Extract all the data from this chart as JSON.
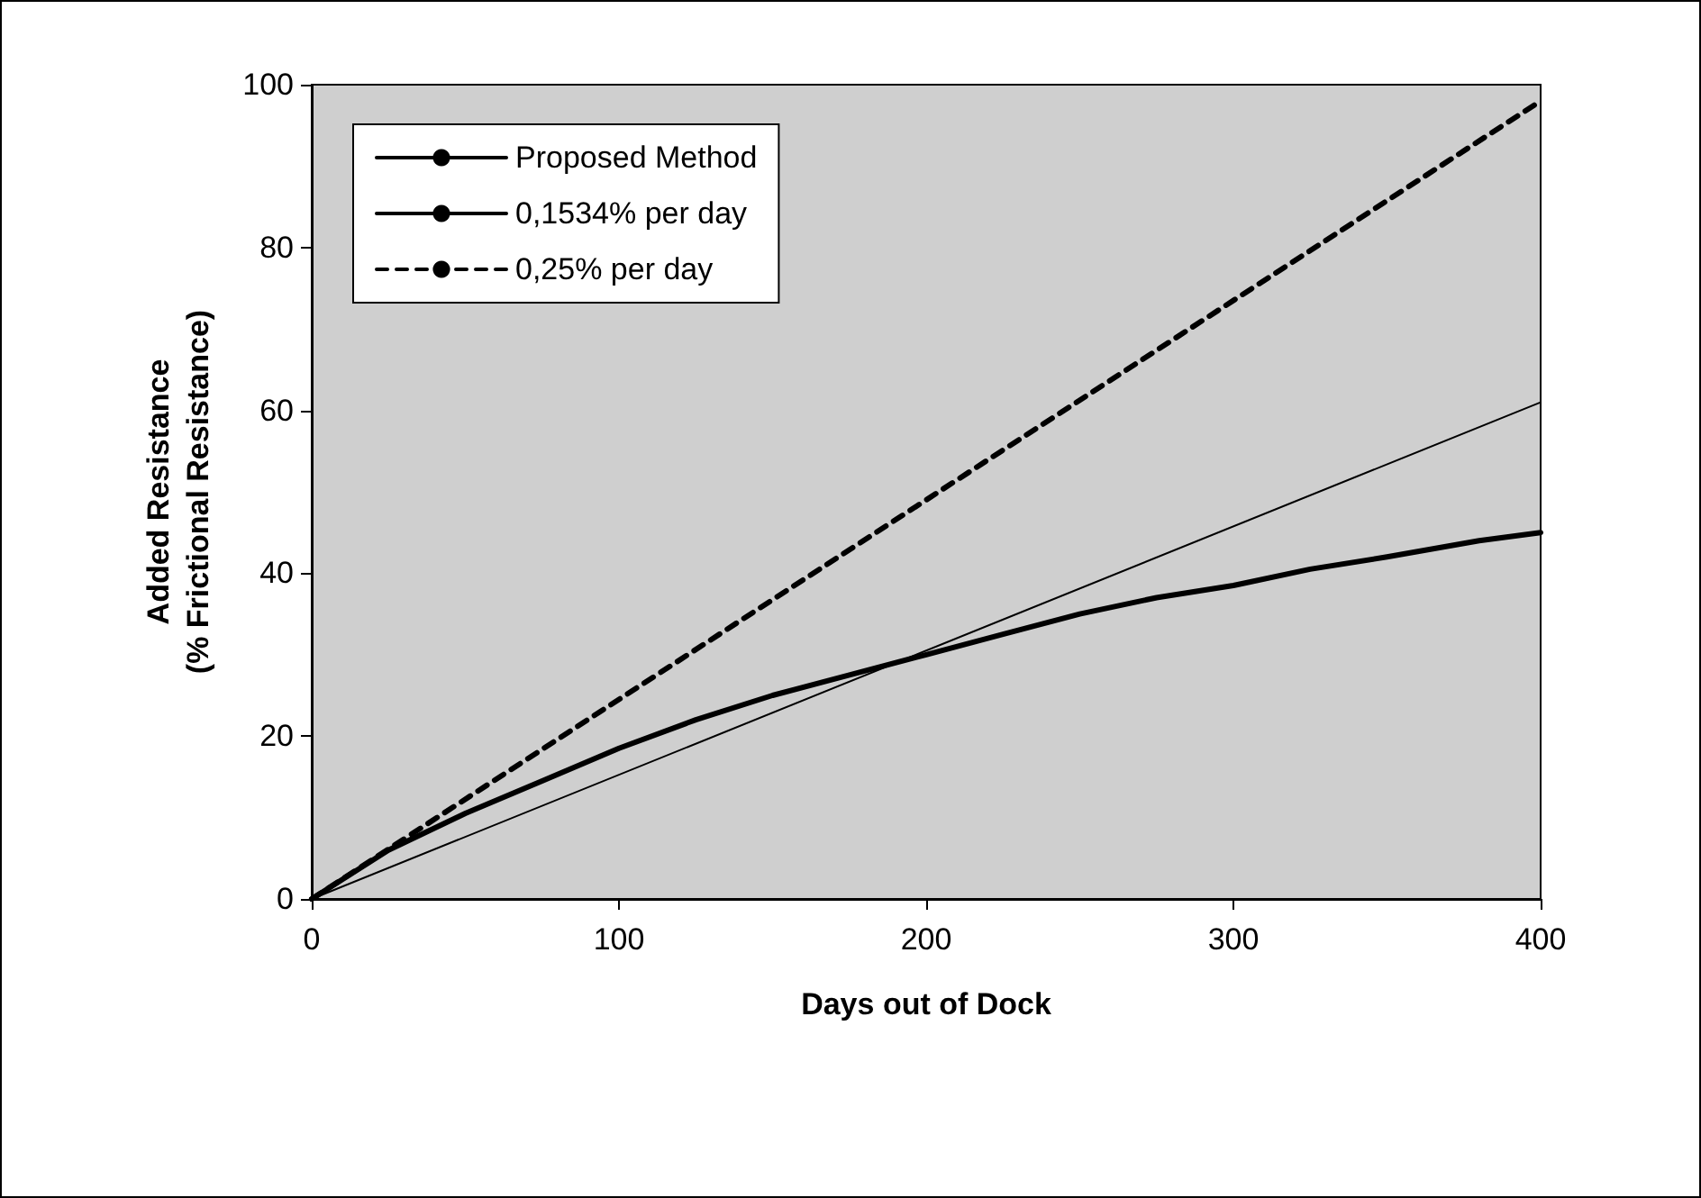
{
  "chart_data": {
    "type": "line",
    "xlabel": "Days out of Dock",
    "ylabel": "Added Resistance\n(% Frictional Resistance)",
    "xlim": [
      0,
      400
    ],
    "xticks": [
      0,
      100,
      200,
      300,
      400
    ],
    "ylim": [
      0,
      100
    ],
    "yticks": [
      0,
      20,
      40,
      60,
      80,
      100
    ],
    "grid": false,
    "legend": "top left",
    "marker": "none",
    "series": [
      {
        "name": "Proposed Method",
        "color": "#000000",
        "line_style": "solid",
        "x": [
          0,
          25,
          50,
          75,
          100,
          125,
          150,
          175,
          200,
          225,
          250,
          275,
          300,
          325,
          350,
          380,
          400
        ],
        "values": [
          0,
          6,
          10.5,
          14.5,
          18.5,
          22,
          25,
          27.5,
          30,
          32.5,
          35,
          37,
          38.5,
          40.5,
          42,
          44,
          45
        ]
      },
      {
        "name": "0,1534% per day",
        "color": "#000000",
        "line_style": "solid",
        "x": [
          0,
          400
        ],
        "values": [
          0,
          61
        ]
      },
      {
        "name": "0,25% per day",
        "color": "#000000",
        "line_style": "dashed",
        "x": [
          0,
          400
        ],
        "values": [
          0,
          98
        ]
      }
    ]
  }
}
